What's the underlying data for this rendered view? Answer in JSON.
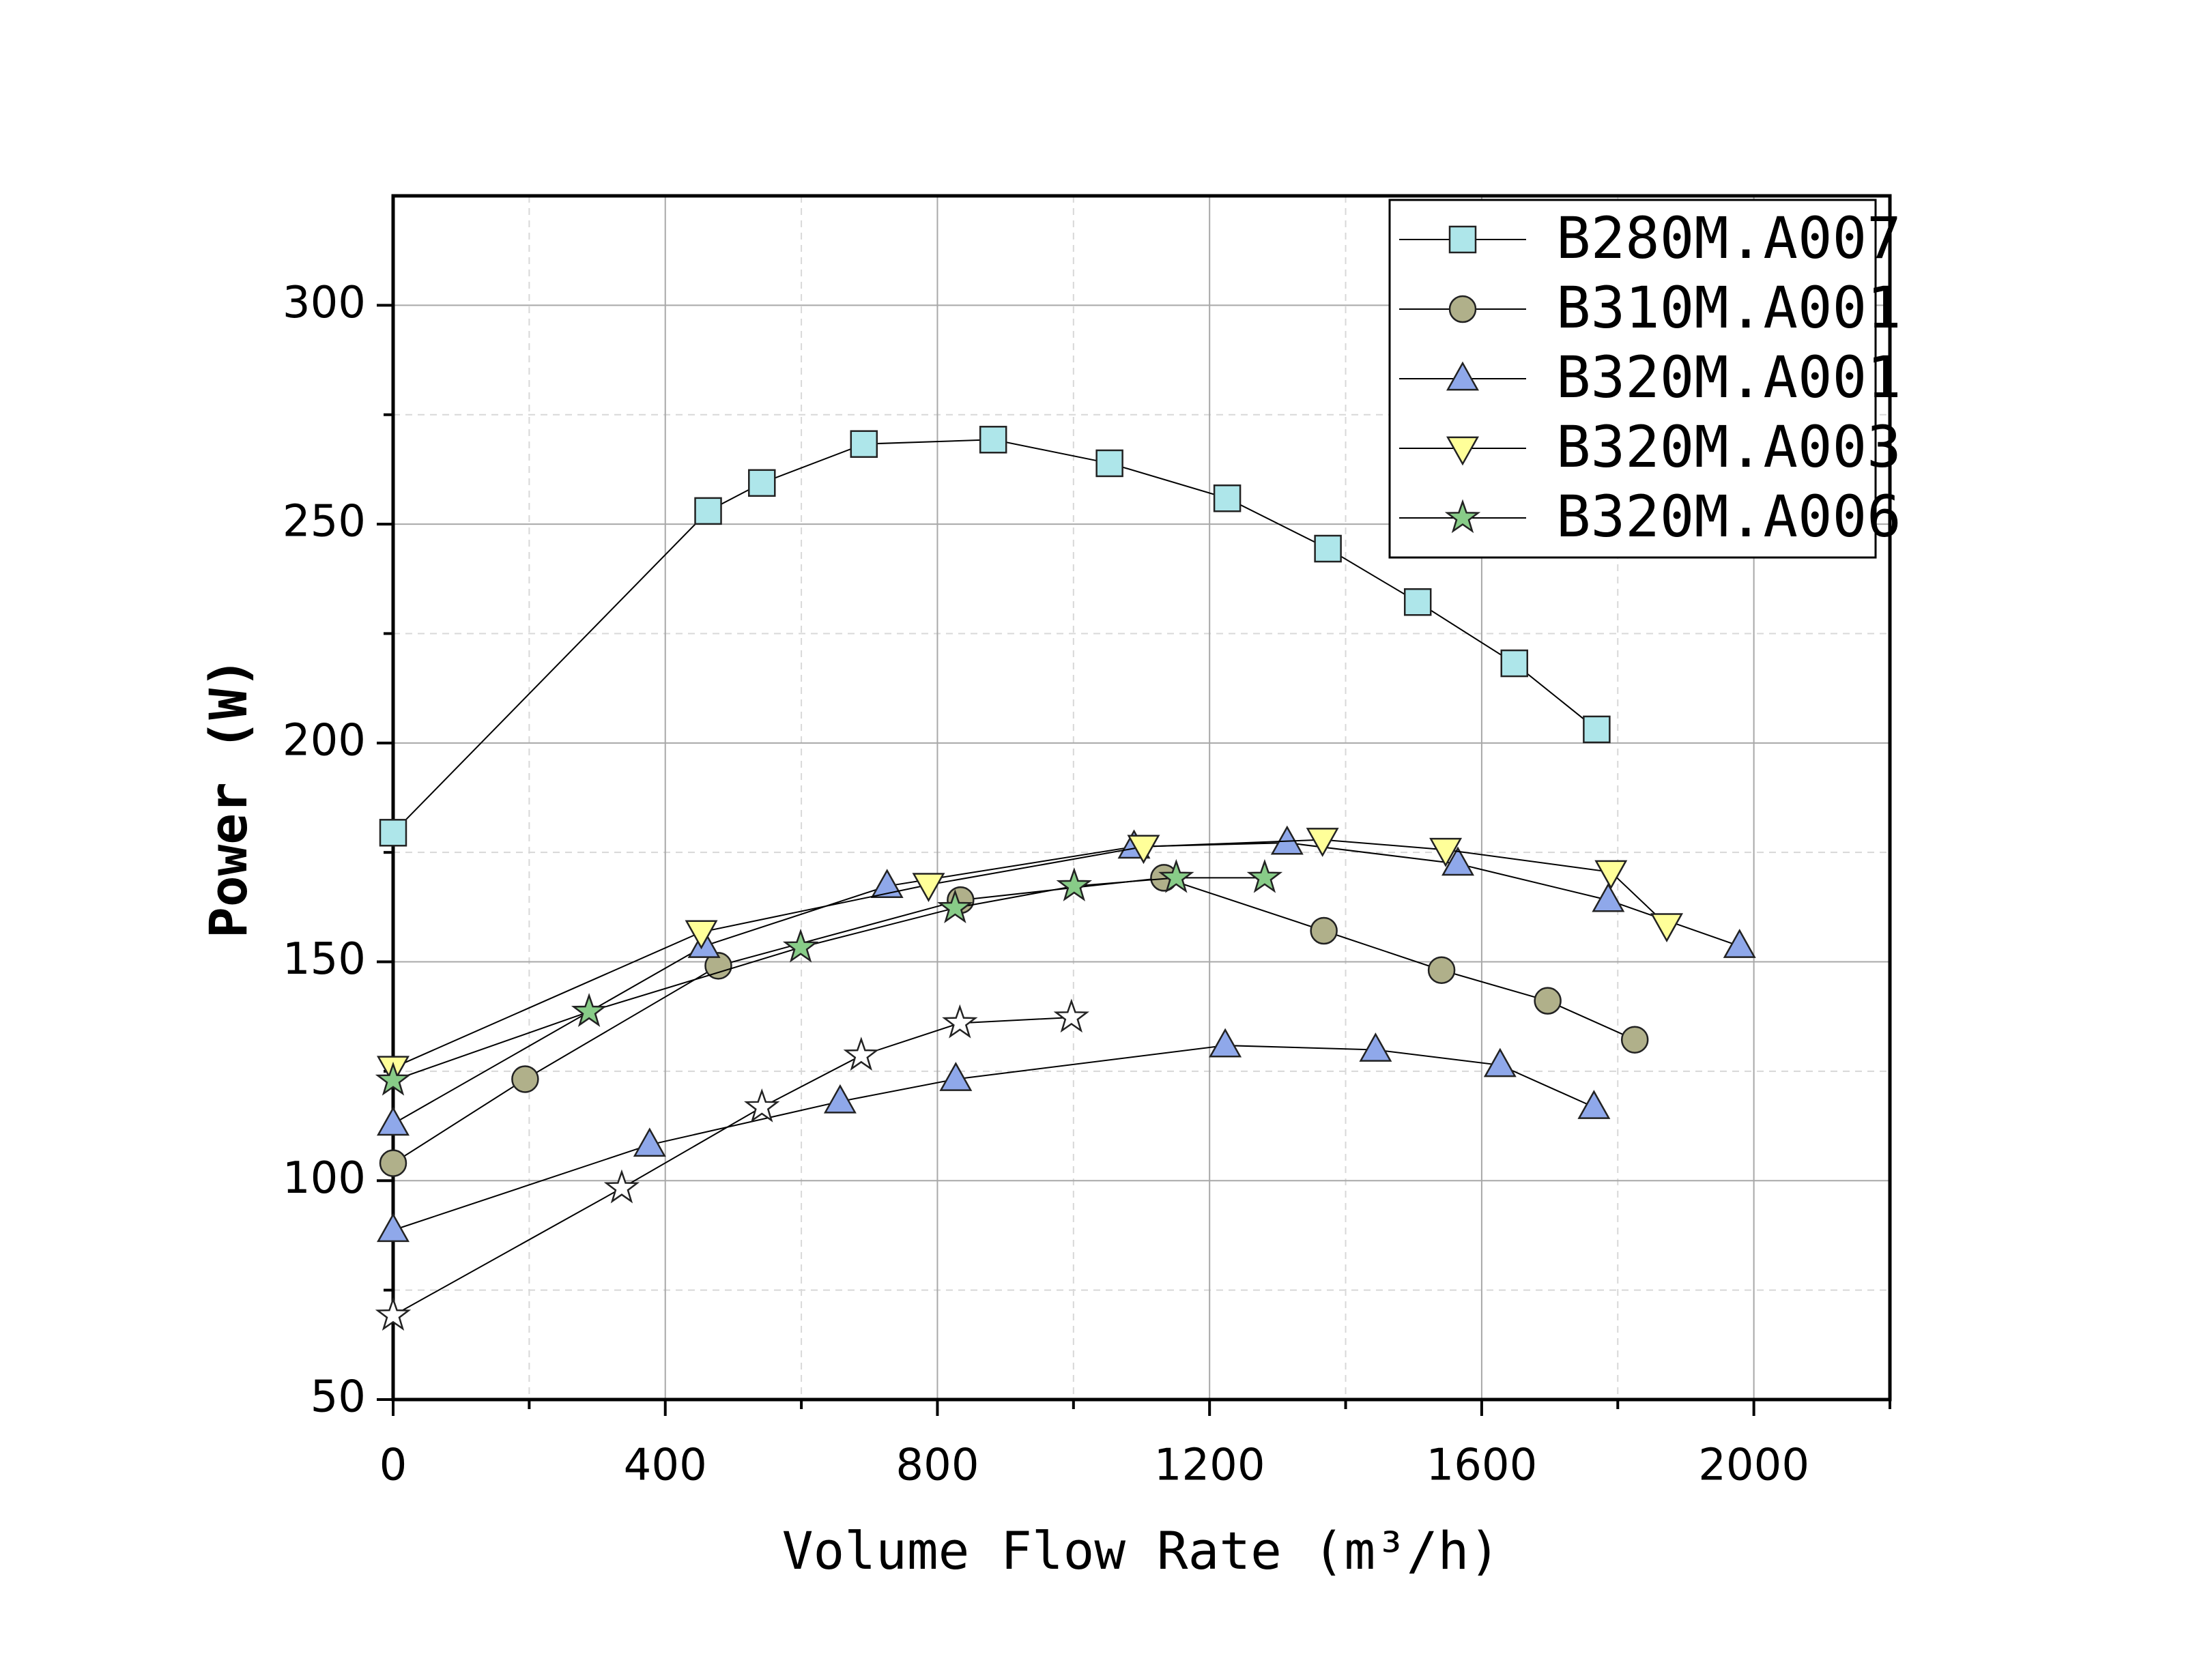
{
  "chart_data": {
    "type": "line",
    "x_label": "Volume Flow Rate (m³/h)",
    "y_label": "Power (W)",
    "xlim": [
      0,
      2200
    ],
    "ylim": [
      50,
      325
    ],
    "xticks": [
      0,
      400,
      800,
      1200,
      1600,
      2000
    ],
    "yticks": [
      50,
      100,
      150,
      200,
      250,
      300
    ],
    "xminorticks": [
      200,
      600,
      1000,
      1400,
      1800,
      2200
    ],
    "yminorticks": [
      75,
      125,
      175,
      225,
      275
    ],
    "grid": true,
    "legend": "upper right",
    "series": [
      {
        "name": "B280M.A007",
        "color": "#aee6ea",
        "marker": "square",
        "x": [
          0,
          463,
          542,
          692,
          882,
          1053,
          1226,
          1374,
          1506,
          1648,
          1769
        ],
        "values": [
          179.5,
          253,
          259.4,
          268.3,
          269.3,
          263.9,
          255.9,
          244.4,
          232.2,
          218.2,
          203.1
        ]
      },
      {
        "name": "B310M.A001",
        "color": "#b0b08a",
        "marker": "circle",
        "x": [
          0,
          194,
          478,
          834,
          1133,
          1368,
          1541,
          1697,
          1825
        ],
        "values": [
          104,
          123.2,
          149.1,
          164.1,
          169.2,
          157.1,
          148.1,
          141.1,
          132.2
        ]
      },
      {
        "name": "B320M.A001",
        "color": "#8fa8ea",
        "marker": "triangle",
        "x": [
          0,
          457,
          726,
          1089,
          1314,
          1565,
          1786,
          1979
        ],
        "values": [
          113,
          153.6,
          167.3,
          176.3,
          177.2,
          172.4,
          164.1,
          153.6
        ]
      },
      {
        "name": "B320M.A003",
        "color": "#ffff99",
        "marker": "triangle-down",
        "x": [
          0,
          453,
          787,
          1103,
          1366,
          1547,
          1790,
          1872
        ],
        "values": [
          125.8,
          156.8,
          167.6,
          176.3,
          177.9,
          175.6,
          170.5,
          158.4
        ]
      },
      {
        "name": "B320M.A006",
        "color": "#88cc88",
        "marker": "star",
        "x": [
          0,
          288,
          599,
          826,
          1001,
          1151,
          1281
        ],
        "values": [
          122.9,
          138.6,
          153.3,
          162.3,
          167.3,
          169.2,
          169.2
        ]
      },
      {
        "color": "#8fa8ea",
        "marker": "triangle",
        "x": [
          0,
          377,
          657,
          827,
          1223,
          1444,
          1627,
          1765
        ],
        "values": [
          88.7,
          108.2,
          118.1,
          123.2,
          130.9,
          129.9,
          126.4,
          116.8
        ]
      },
      {
        "color": "#ffffff",
        "marker": "star",
        "x": [
          0,
          336,
          542,
          688,
          833,
          997
        ],
        "values": [
          69.2,
          98.3,
          116.8,
          128.6,
          136,
          137.3
        ]
      }
    ]
  }
}
